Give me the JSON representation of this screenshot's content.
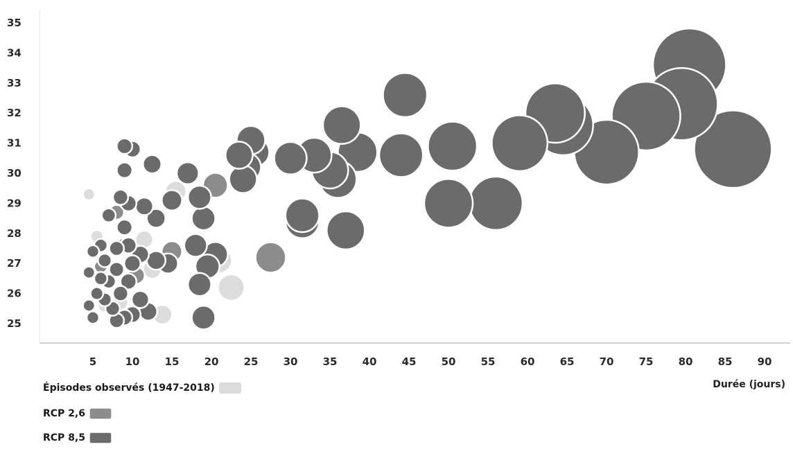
{
  "colors": {
    "observed": "#dcdcdc",
    "rcp26": "#8c8c8c",
    "rcp85": "#6b6b6b"
  },
  "chart_data": {
    "type": "scatter",
    "subtype": "bubble",
    "xlabel": "Durée (jours)",
    "ylabel": "",
    "xlim": [
      0,
      93
    ],
    "ylim": [
      24.6,
      35.2
    ],
    "x_ticks": [
      5,
      10,
      15,
      20,
      25,
      30,
      35,
      40,
      45,
      50,
      55,
      60,
      65,
      70,
      75,
      80,
      85,
      90
    ],
    "y_ticks": [
      25,
      26,
      27,
      28,
      29,
      30,
      31,
      32,
      33,
      34,
      35
    ],
    "legend_position": "bottom-left",
    "grid": false,
    "series": [
      {
        "name": "Épisodes observés (1947-2018)",
        "color_key": "observed",
        "points": [
          {
            "x": 4.5,
            "y": 29.3
          },
          {
            "x": 11.5,
            "y": 27.8
          },
          {
            "x": 13.8,
            "y": 25.3
          },
          {
            "x": 15.5,
            "y": 29.4
          },
          {
            "x": 21.0,
            "y": 27.1
          },
          {
            "x": 22.5,
            "y": 26.2
          },
          {
            "x": 5.5,
            "y": 27.9
          },
          {
            "x": 6.5,
            "y": 25.6
          },
          {
            "x": 8.5,
            "y": 25.7
          },
          {
            "x": 12.5,
            "y": 26.8
          }
        ]
      },
      {
        "name": "RCP 2,6",
        "color_key": "rcp26",
        "points": [
          {
            "x": 20.5,
            "y": 29.6
          },
          {
            "x": 27.5,
            "y": 27.2
          },
          {
            "x": 24.0,
            "y": 29.8
          },
          {
            "x": 15.0,
            "y": 27.4
          },
          {
            "x": 9.0,
            "y": 27.6
          },
          {
            "x": 8.0,
            "y": 28.7
          },
          {
            "x": 10.5,
            "y": 26.6
          },
          {
            "x": 6.0,
            "y": 26.9
          }
        ]
      },
      {
        "name": "RCP 8,5",
        "color_key": "rcp85",
        "points": [
          {
            "x": 80.5,
            "y": 33.6
          },
          {
            "x": 79.5,
            "y": 32.3
          },
          {
            "x": 75.0,
            "y": 31.9
          },
          {
            "x": 86.0,
            "y": 30.8
          },
          {
            "x": 70.0,
            "y": 30.7
          },
          {
            "x": 64.5,
            "y": 31.6
          },
          {
            "x": 63.5,
            "y": 32.0
          },
          {
            "x": 59.0,
            "y": 31.0
          },
          {
            "x": 56.0,
            "y": 29.0
          },
          {
            "x": 50.0,
            "y": 29.0
          },
          {
            "x": 50.5,
            "y": 30.9
          },
          {
            "x": 44.5,
            "y": 32.6
          },
          {
            "x": 44.0,
            "y": 30.6
          },
          {
            "x": 38.5,
            "y": 30.7
          },
          {
            "x": 36.5,
            "y": 31.6
          },
          {
            "x": 36.0,
            "y": 29.8
          },
          {
            "x": 35.0,
            "y": 30.1
          },
          {
            "x": 37.0,
            "y": 28.1
          },
          {
            "x": 33.0,
            "y": 30.6
          },
          {
            "x": 30.0,
            "y": 30.5
          },
          {
            "x": 31.5,
            "y": 28.4
          },
          {
            "x": 31.5,
            "y": 28.6
          },
          {
            "x": 25.0,
            "y": 31.1
          },
          {
            "x": 25.5,
            "y": 30.7
          },
          {
            "x": 23.5,
            "y": 30.6
          },
          {
            "x": 24.5,
            "y": 30.2
          },
          {
            "x": 24.0,
            "y": 29.8
          },
          {
            "x": 19.0,
            "y": 28.5
          },
          {
            "x": 18.5,
            "y": 29.2
          },
          {
            "x": 18.0,
            "y": 27.6
          },
          {
            "x": 20.5,
            "y": 27.3
          },
          {
            "x": 19.5,
            "y": 26.9
          },
          {
            "x": 18.5,
            "y": 26.3
          },
          {
            "x": 19.0,
            "y": 25.2
          },
          {
            "x": 17.0,
            "y": 30.0
          },
          {
            "x": 15.0,
            "y": 29.1
          },
          {
            "x": 12.5,
            "y": 30.3
          },
          {
            "x": 13.0,
            "y": 28.5
          },
          {
            "x": 11.5,
            "y": 28.9
          },
          {
            "x": 14.5,
            "y": 27.0
          },
          {
            "x": 13.0,
            "y": 27.1
          },
          {
            "x": 9.0,
            "y": 30.9
          },
          {
            "x": 10.0,
            "y": 30.8
          },
          {
            "x": 9.0,
            "y": 30.1
          },
          {
            "x": 8.5,
            "y": 29.2
          },
          {
            "x": 9.5,
            "y": 29.0
          },
          {
            "x": 7.0,
            "y": 28.6
          },
          {
            "x": 9.0,
            "y": 28.2
          },
          {
            "x": 8.0,
            "y": 27.5
          },
          {
            "x": 9.5,
            "y": 27.6
          },
          {
            "x": 11.0,
            "y": 27.3
          },
          {
            "x": 6.5,
            "y": 27.1
          },
          {
            "x": 8.0,
            "y": 26.8
          },
          {
            "x": 10.0,
            "y": 27.0
          },
          {
            "x": 5.0,
            "y": 27.4
          },
          {
            "x": 6.0,
            "y": 27.6
          },
          {
            "x": 7.0,
            "y": 26.4
          },
          {
            "x": 8.5,
            "y": 26.0
          },
          {
            "x": 9.5,
            "y": 26.4
          },
          {
            "x": 11.0,
            "y": 25.8
          },
          {
            "x": 5.5,
            "y": 26.0
          },
          {
            "x": 6.5,
            "y": 25.8
          },
          {
            "x": 4.5,
            "y": 25.6
          },
          {
            "x": 5.0,
            "y": 25.2
          },
          {
            "x": 7.5,
            "y": 25.5
          },
          {
            "x": 10.0,
            "y": 25.3
          },
          {
            "x": 12.0,
            "y": 25.4
          },
          {
            "x": 4.5,
            "y": 26.7
          },
          {
            "x": 6.0,
            "y": 26.5
          },
          {
            "x": 8.0,
            "y": 25.1
          },
          {
            "x": 9.0,
            "y": 25.2
          }
        ]
      }
    ]
  },
  "legend": {
    "items": [
      {
        "label": "Épisodes observés (1947-2018)",
        "color_key": "observed"
      },
      {
        "label": "RCP 2,6",
        "color_key": "rcp26"
      },
      {
        "label": "RCP 8,5",
        "color_key": "rcp85"
      }
    ]
  }
}
